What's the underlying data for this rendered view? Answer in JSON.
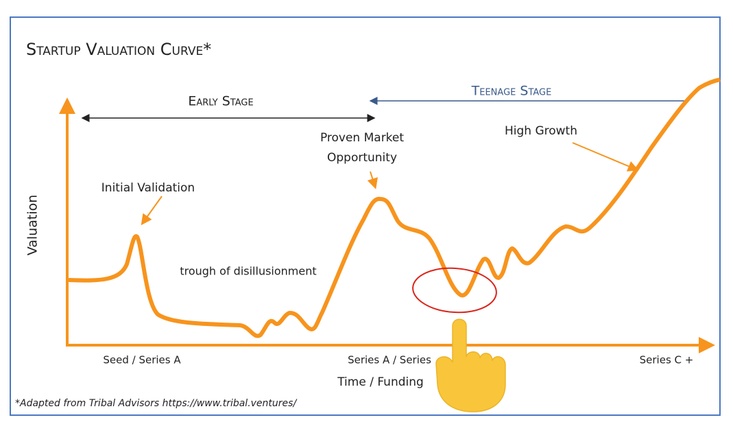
{
  "header": {
    "title": "Startup Valuation Curve*"
  },
  "stages": {
    "early": "Early Stage",
    "teenage": "Teenage Stage"
  },
  "axes": {
    "y_label": "Valuation",
    "x_label": "Time / Funding",
    "x_labels": [
      "Seed / Series A",
      "Series A / Series",
      "Series C +"
    ]
  },
  "annotations": {
    "initial": "Initial Validation",
    "proven": [
      "Proven Market",
      "Opportunity"
    ],
    "growth": "High Growth",
    "trough": "trough of disillusionment"
  },
  "footnote": "*Adapted from Tribal Advisors https://www.tribal.ventures/"
}
